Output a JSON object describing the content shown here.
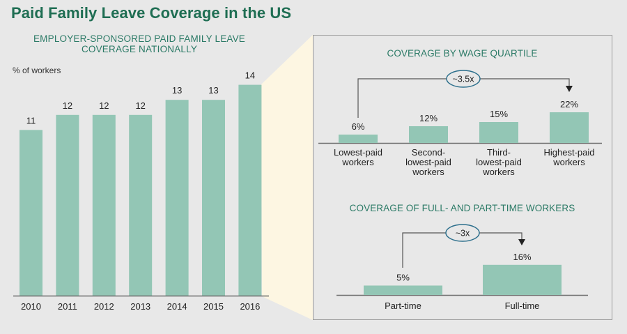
{
  "title": "Paid Family Leave Coverage in the US",
  "colors": {
    "title": "#1f6e53",
    "subtitle": "#2b7a66",
    "bar": "#93c6b5",
    "background": "#e8e8e8",
    "zoom_highlight": "#fdf6e2",
    "ellipse_stroke": "#2c6f8c"
  },
  "chart_data": [
    {
      "type": "bar",
      "title": "EMPLOYER-SPONSORED PAID FAMILY LEAVE COVERAGE NATIONALLY",
      "ylabel": "% of workers",
      "xlabel": "",
      "categories": [
        "2010",
        "2011",
        "2012",
        "2013",
        "2014",
        "2015",
        "2016"
      ],
      "values": [
        11,
        12,
        12,
        12,
        13,
        13,
        14
      ],
      "data_labels": [
        "11",
        "12",
        "12",
        "12",
        "13",
        "13",
        "14"
      ],
      "ylim": [
        0,
        14
      ],
      "grid": false,
      "legend": "none"
    },
    {
      "type": "bar",
      "title": "COVERAGE BY WAGE QUARTILE",
      "categories": [
        "Lowest-paid workers",
        "Second-lowest-paid workers",
        "Third-lowest-paid workers",
        "Highest-paid workers"
      ],
      "category_lines": [
        [
          "Lowest-paid",
          "workers"
        ],
        [
          "Second-",
          "lowest-paid",
          "workers"
        ],
        [
          "Third-",
          "lowest-paid",
          "workers"
        ],
        [
          "Highest-paid",
          "workers"
        ]
      ],
      "values": [
        6,
        12,
        15,
        22
      ],
      "data_labels": [
        "6%",
        "12%",
        "15%",
        "22%"
      ],
      "unit": "%",
      "annotation": {
        "text": "~3.5x",
        "from": "Lowest-paid workers",
        "to": "Highest-paid workers"
      },
      "grid": false,
      "legend": "none"
    },
    {
      "type": "bar",
      "title": "COVERAGE OF FULL- AND PART-TIME WORKERS",
      "categories": [
        "Part-time",
        "Full-time"
      ],
      "values": [
        5,
        16
      ],
      "data_labels": [
        "5%",
        "16%"
      ],
      "unit": "%",
      "annotation": {
        "text": "~3x",
        "from": "Part-time",
        "to": "Full-time"
      },
      "grid": false,
      "legend": "none"
    }
  ]
}
